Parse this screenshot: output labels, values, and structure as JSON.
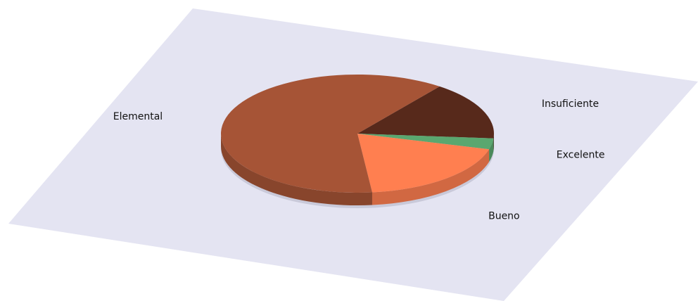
{
  "chart_data": {
    "type": "pie",
    "title": "",
    "three_d": true,
    "legend": "none",
    "categories": [
      "Insuficiente",
      "Excelente",
      "Bueno",
      "Elemental"
    ],
    "values": [
      16,
      3,
      19,
      62
    ],
    "colors": [
      "#57291b",
      "#5aa76f",
      "#ff7f50",
      "#a65436"
    ],
    "plane_color": "#e4e4f2"
  }
}
